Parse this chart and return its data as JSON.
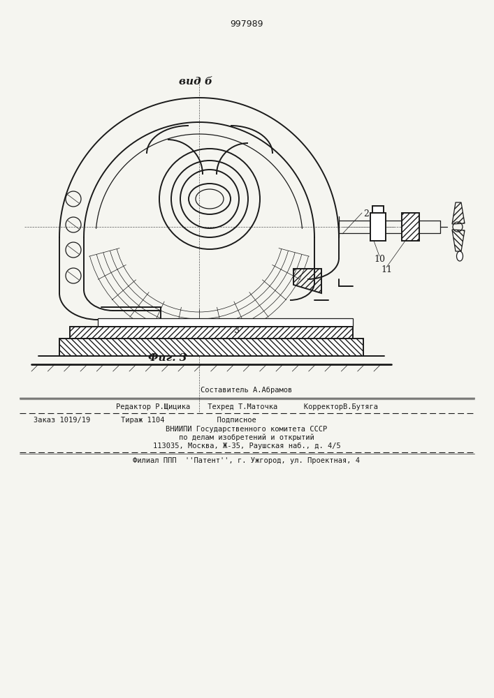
{
  "patent_number": "997989",
  "view_label": "вид б",
  "fig_label": "Фиг. 3",
  "label_2": "2",
  "label_3": "3",
  "label_10": "10",
  "label_11": "11",
  "footer_line1": "Составитель А.Абрамов",
  "footer_line2": "Редактор Р.Щицика    Техред Т.Маточка      КорректорВ.Бутяга",
  "footer_line3": "Заказ 1019/19       Тираж 1104            Подписное",
  "footer_line4": "ВНИИПИ Государственного комитета СССР",
  "footer_line5": "по делам изобретений и открытий",
  "footer_line6": "113035, Москва, Ж-35, Раушская наб., д. 4/5",
  "footer_line7": "Филиал ППП  ''Патент'', г. Ужгород, ул. Проектная, 4",
  "bg_color": "#f5f5f0",
  "line_color": "#1a1a1a"
}
